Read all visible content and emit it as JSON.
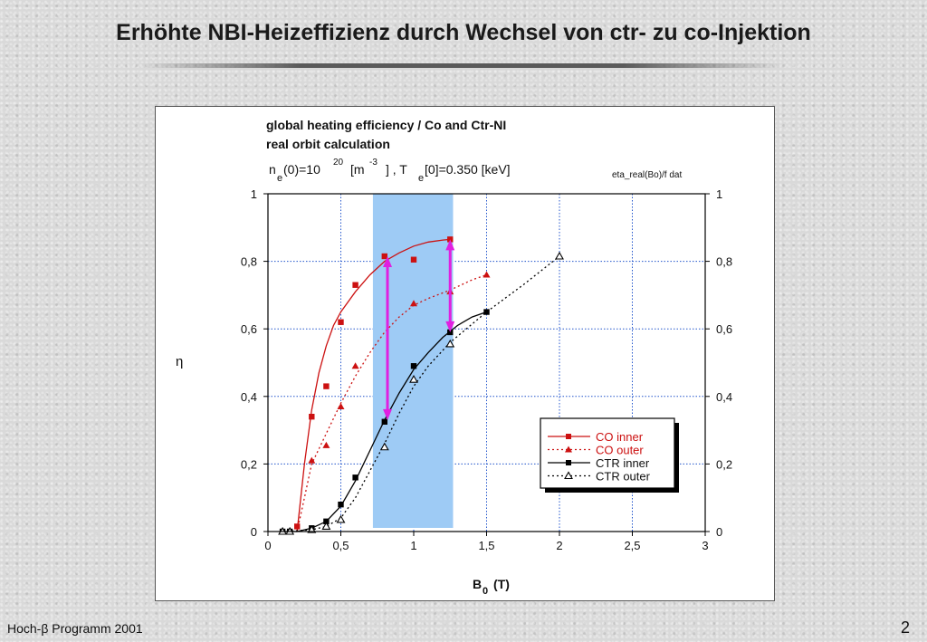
{
  "slide": {
    "title": "Erhöhte NBI-Heizeffizienz durch Wechsel von ctr- zu co-Injektion",
    "footer_left": "Hoch-β Programm 2001",
    "page_number": "2"
  },
  "chart_data": {
    "type": "line",
    "title_line1": "global heating efficiency / Co and Ctr-NI",
    "title_line2": "real orbit calculation",
    "params": {
      "ne_label": "n",
      "ne_sub": "e",
      "ne_mid": "(0)=10",
      "ne_exp": "20",
      "m_label": "[m",
      "m_exp": "-3",
      "sep": "] ,  T",
      "te_sub": "e",
      "te_value": "[0]=0.350 [keV]"
    },
    "file_label": "eta_real(Bo)/f dat",
    "xlabel_main": "B",
    "xlabel_sub": "0",
    "xlabel_unit": "(T)",
    "ylabel": "η",
    "xlim": [
      0,
      3
    ],
    "ylim": [
      0,
      1
    ],
    "x_ticks": [
      0,
      0.5,
      1,
      1.5,
      2,
      2.5,
      3
    ],
    "x_tick_labels": [
      "0",
      "0,5",
      "1",
      "1,5",
      "2",
      "2,5",
      "3"
    ],
    "y_ticks": [
      0,
      0.2,
      0.4,
      0.6,
      0.8,
      1
    ],
    "y_tick_labels": [
      "0",
      "0,2",
      "0,4",
      "0,6",
      "0,8",
      "1"
    ],
    "grid": true,
    "legend_position": "lower-right",
    "highlight_band_x": [
      0.72,
      1.27
    ],
    "arrows": [
      {
        "x": 0.82,
        "y_from": 0.815,
        "y_to": 0.33
      },
      {
        "x": 1.25,
        "y_from": 0.865,
        "y_to": 0.59
      }
    ],
    "series": [
      {
        "name": "CO inner",
        "color": "#cc1111",
        "marker": "square",
        "line": "solid",
        "points": [
          [
            0.2,
            0.015
          ],
          [
            0.3,
            0.34
          ],
          [
            0.4,
            0.43
          ],
          [
            0.5,
            0.62
          ],
          [
            0.6,
            0.73
          ],
          [
            0.8,
            0.815
          ],
          [
            1.0,
            0.805
          ],
          [
            1.25,
            0.865
          ]
        ],
        "fit": [
          [
            0.2,
            0.0
          ],
          [
            0.25,
            0.2
          ],
          [
            0.3,
            0.36
          ],
          [
            0.35,
            0.47
          ],
          [
            0.4,
            0.55
          ],
          [
            0.45,
            0.61
          ],
          [
            0.5,
            0.65
          ],
          [
            0.6,
            0.71
          ],
          [
            0.7,
            0.76
          ],
          [
            0.8,
            0.8
          ],
          [
            0.9,
            0.825
          ],
          [
            1.0,
            0.845
          ],
          [
            1.1,
            0.857
          ],
          [
            1.2,
            0.863
          ],
          [
            1.25,
            0.865
          ]
        ]
      },
      {
        "name": "CO outer",
        "color": "#cc1111",
        "marker": "triangle-filled",
        "line": "dotted",
        "points": [
          [
            0.3,
            0.21
          ],
          [
            0.4,
            0.255
          ],
          [
            0.5,
            0.37
          ],
          [
            0.6,
            0.49
          ],
          [
            1.0,
            0.675
          ],
          [
            1.25,
            0.71
          ],
          [
            1.5,
            0.76
          ]
        ],
        "fit": [
          [
            0.2,
            0.0
          ],
          [
            0.25,
            0.1
          ],
          [
            0.3,
            0.2
          ],
          [
            0.4,
            0.29
          ],
          [
            0.5,
            0.38
          ],
          [
            0.6,
            0.46
          ],
          [
            0.7,
            0.53
          ],
          [
            0.8,
            0.59
          ],
          [
            0.9,
            0.635
          ],
          [
            1.0,
            0.67
          ],
          [
            1.1,
            0.69
          ],
          [
            1.25,
            0.715
          ],
          [
            1.4,
            0.745
          ],
          [
            1.5,
            0.76
          ]
        ]
      },
      {
        "name": "CTR inner",
        "color": "#000000",
        "marker": "square",
        "line": "solid",
        "points": [
          [
            0.1,
            0.0
          ],
          [
            0.15,
            0.0
          ],
          [
            0.3,
            0.01
          ],
          [
            0.4,
            0.03
          ],
          [
            0.5,
            0.08
          ],
          [
            0.6,
            0.16
          ],
          [
            0.8,
            0.325
          ],
          [
            1.0,
            0.49
          ],
          [
            1.25,
            0.59
          ],
          [
            1.5,
            0.65
          ]
        ],
        "fit": [
          [
            0.1,
            0.0
          ],
          [
            0.2,
            0.0
          ],
          [
            0.3,
            0.01
          ],
          [
            0.4,
            0.03
          ],
          [
            0.5,
            0.075
          ],
          [
            0.6,
            0.15
          ],
          [
            0.7,
            0.24
          ],
          [
            0.8,
            0.33
          ],
          [
            0.9,
            0.41
          ],
          [
            1.0,
            0.48
          ],
          [
            1.1,
            0.53
          ],
          [
            1.2,
            0.575
          ],
          [
            1.3,
            0.61
          ],
          [
            1.4,
            0.635
          ],
          [
            1.5,
            0.65
          ]
        ]
      },
      {
        "name": "CTR outer",
        "color": "#000000",
        "marker": "triangle-open",
        "line": "dotted",
        "points": [
          [
            0.1,
            0.0
          ],
          [
            0.15,
            0.0
          ],
          [
            0.3,
            0.005
          ],
          [
            0.4,
            0.015
          ],
          [
            0.5,
            0.035
          ],
          [
            0.8,
            0.25
          ],
          [
            1.0,
            0.45
          ],
          [
            1.25,
            0.555
          ],
          [
            2.0,
            0.815
          ]
        ],
        "fit": [
          [
            0.1,
            0.0
          ],
          [
            0.3,
            0.005
          ],
          [
            0.4,
            0.015
          ],
          [
            0.5,
            0.04
          ],
          [
            0.6,
            0.1
          ],
          [
            0.7,
            0.18
          ],
          [
            0.8,
            0.26
          ],
          [
            0.9,
            0.35
          ],
          [
            1.0,
            0.43
          ],
          [
            1.1,
            0.49
          ],
          [
            1.25,
            0.56
          ],
          [
            1.5,
            0.65
          ],
          [
            1.75,
            0.73
          ],
          [
            2.0,
            0.815
          ]
        ]
      }
    ]
  }
}
